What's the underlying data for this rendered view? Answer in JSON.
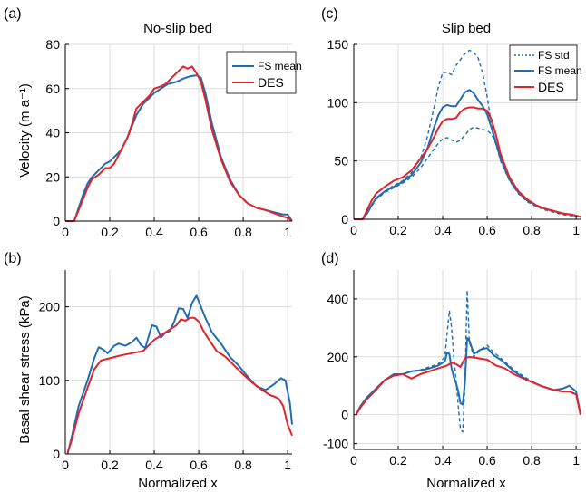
{
  "colors": {
    "fs": "#1f6db3",
    "des": "#e0242b",
    "grid": "#dcdcdc",
    "axis": "#000000"
  },
  "chart_data": [
    {
      "panel": "(a)",
      "title": "No-slip bed",
      "type": "line",
      "xlabel": "",
      "ylabel": "Velocity (m a⁻¹)",
      "xlim": [
        0,
        1.02
      ],
      "ylim": [
        0,
        80
      ],
      "xticks": [
        "0",
        "0.2",
        "0.4",
        "0.6",
        "0.8",
        "1"
      ],
      "xtick_values": [
        0,
        0.2,
        0.4,
        0.6,
        0.8,
        1
      ],
      "yticks": [
        "0",
        "20",
        "40",
        "60",
        "80"
      ],
      "ytick_values": [
        0,
        20,
        40,
        60,
        80
      ],
      "grid": true,
      "legend": "top-right",
      "series": [
        {
          "name": "FS mean",
          "style": "solid",
          "color": "#1f6db3",
          "x": [
            0,
            0.04,
            0.06,
            0.08,
            0.1,
            0.12,
            0.15,
            0.18,
            0.2,
            0.22,
            0.25,
            0.28,
            0.3,
            0.32,
            0.35,
            0.38,
            0.4,
            0.43,
            0.46,
            0.5,
            0.53,
            0.56,
            0.59,
            0.61,
            0.63,
            0.66,
            0.7,
            0.74,
            0.78,
            0.82,
            0.86,
            0.9,
            0.94,
            0.98,
            1.0,
            1.02
          ],
          "y": [
            0,
            0,
            6,
            12,
            17,
            20,
            23,
            26,
            27,
            29,
            32,
            38,
            43,
            48,
            53,
            56,
            58,
            60,
            62,
            63,
            64.5,
            65.5,
            66,
            65,
            58,
            44,
            29,
            19,
            12,
            8,
            6,
            5,
            4,
            3,
            3,
            0
          ]
        },
        {
          "name": "DES",
          "style": "solid",
          "color": "#e0242b",
          "x": [
            0,
            0.04,
            0.06,
            0.08,
            0.1,
            0.12,
            0.15,
            0.18,
            0.2,
            0.22,
            0.25,
            0.28,
            0.3,
            0.32,
            0.35,
            0.38,
            0.4,
            0.43,
            0.45,
            0.47,
            0.49,
            0.51,
            0.53,
            0.55,
            0.57,
            0.59,
            0.61,
            0.63,
            0.66,
            0.7,
            0.74,
            0.78,
            0.82,
            0.86,
            0.9,
            0.94,
            0.98,
            1.0,
            1.02
          ],
          "y": [
            0,
            0,
            5,
            10,
            15,
            19,
            21,
            24,
            24,
            26,
            32,
            38,
            44,
            51,
            54,
            57,
            60,
            61,
            62,
            64,
            66,
            68,
            70,
            69,
            70,
            67,
            63,
            55,
            41,
            28,
            18,
            12,
            8,
            6,
            5,
            3.5,
            2,
            1.5,
            0
          ]
        }
      ]
    },
    {
      "panel": "(b)",
      "title": "",
      "type": "line",
      "xlabel": "Normalized x",
      "ylabel": "Basal shear stress (kPa)",
      "xlim": [
        0,
        1.02
      ],
      "ylim": [
        0,
        250
      ],
      "xticks": [
        "0",
        "0.2",
        "0.4",
        "0.6",
        "0.8",
        "1"
      ],
      "xtick_values": [
        0,
        0.2,
        0.4,
        0.6,
        0.8,
        1
      ],
      "yticks": [
        "0",
        "100",
        "200"
      ],
      "ytick_values": [
        0,
        100,
        200
      ],
      "grid": true,
      "series": [
        {
          "name": "FS mean",
          "style": "solid",
          "color": "#1f6db3",
          "x": [
            0.01,
            0.03,
            0.06,
            0.1,
            0.13,
            0.15,
            0.17,
            0.19,
            0.2,
            0.22,
            0.24,
            0.27,
            0.3,
            0.32,
            0.34,
            0.36,
            0.38,
            0.39,
            0.41,
            0.43,
            0.45,
            0.47,
            0.49,
            0.51,
            0.53,
            0.55,
            0.57,
            0.59,
            0.61,
            0.63,
            0.66,
            0.7,
            0.74,
            0.78,
            0.82,
            0.86,
            0.9,
            0.94,
            0.97,
            0.99,
            1.01,
            1.02
          ],
          "y": [
            0,
            25,
            65,
            100,
            130,
            145,
            142,
            137,
            140,
            147,
            150,
            147,
            152,
            158,
            148,
            144,
            165,
            175,
            173,
            158,
            165,
            167,
            180,
            198,
            197,
            185,
            205,
            215,
            200,
            185,
            165,
            150,
            132,
            120,
            105,
            92,
            87,
            95,
            103,
            100,
            70,
            40
          ]
        },
        {
          "name": "DES",
          "style": "solid",
          "color": "#e0242b",
          "x": [
            0.01,
            0.03,
            0.06,
            0.1,
            0.13,
            0.16,
            0.2,
            0.25,
            0.3,
            0.35,
            0.4,
            0.45,
            0.5,
            0.52,
            0.54,
            0.56,
            0.58,
            0.6,
            0.62,
            0.64,
            0.68,
            0.72,
            0.76,
            0.8,
            0.84,
            0.88,
            0.92,
            0.94,
            0.96,
            0.98,
            1.0,
            1.02
          ],
          "y": [
            2,
            20,
            55,
            90,
            115,
            127,
            130,
            134,
            137,
            140,
            155,
            165,
            175,
            183,
            181,
            185,
            185,
            180,
            168,
            158,
            140,
            132,
            120,
            108,
            97,
            88,
            80,
            78,
            75,
            65,
            40,
            25
          ]
        }
      ]
    },
    {
      "panel": "(c)",
      "title": "Slip bed",
      "type": "line",
      "xlabel": "",
      "ylabel": "",
      "xlim": [
        0,
        1.02
      ],
      "ylim": [
        0,
        150
      ],
      "xticks": [
        "0",
        "0.2",
        "0.4",
        "0.6",
        "0.8",
        "1"
      ],
      "xtick_values": [
        0,
        0.2,
        0.4,
        0.6,
        0.8,
        1
      ],
      "yticks": [
        "0",
        "50",
        "100",
        "150"
      ],
      "ytick_values": [
        0,
        50,
        100,
        150
      ],
      "grid": true,
      "legend": "top-right",
      "series": [
        {
          "name": "FS std",
          "style": "dashed",
          "color": "#1f6db3",
          "x": [
            0,
            0.04,
            0.06,
            0.08,
            0.1,
            0.14,
            0.18,
            0.22,
            0.26,
            0.3,
            0.33,
            0.36,
            0.38,
            0.4,
            0.42,
            0.44,
            0.46,
            0.48,
            0.5,
            0.52,
            0.54,
            0.56,
            0.58,
            0.6,
            0.62,
            0.64,
            0.66,
            0.7,
            0.74,
            0.78,
            0.82,
            0.86,
            0.9,
            0.94,
            0.98,
            1.02
          ],
          "y": [
            0,
            0,
            5,
            12,
            18,
            24,
            29,
            33,
            40,
            52,
            70,
            95,
            113,
            126,
            126,
            124,
            132,
            137,
            142,
            145,
            143,
            138,
            125,
            105,
            80,
            65,
            52,
            35,
            24,
            17,
            12,
            9,
            7,
            5,
            4,
            2
          ]
        },
        {
          "name": "",
          "style": "dashed",
          "color": "#1f6db3",
          "x": [
            0,
            0.04,
            0.06,
            0.08,
            0.1,
            0.14,
            0.18,
            0.22,
            0.26,
            0.3,
            0.33,
            0.36,
            0.38,
            0.4,
            0.42,
            0.44,
            0.46,
            0.48,
            0.5,
            0.52,
            0.54,
            0.56,
            0.58,
            0.6,
            0.62,
            0.64,
            0.66,
            0.7,
            0.74,
            0.78,
            0.82,
            0.86,
            0.9,
            0.94,
            0.98,
            1.02
          ],
          "y": [
            0,
            0,
            5,
            11,
            17,
            23,
            27,
            31,
            36,
            44,
            52,
            60,
            65,
            69,
            70,
            68,
            66,
            68,
            72,
            77,
            79,
            78,
            77,
            76,
            73,
            64,
            50,
            33,
            22,
            15,
            11,
            8,
            6,
            4,
            3,
            2
          ]
        },
        {
          "name": "FS mean",
          "style": "solid",
          "color": "#1f6db3",
          "x": [
            0,
            0.04,
            0.06,
            0.08,
            0.1,
            0.14,
            0.18,
            0.22,
            0.26,
            0.3,
            0.33,
            0.36,
            0.38,
            0.4,
            0.42,
            0.44,
            0.46,
            0.48,
            0.5,
            0.52,
            0.54,
            0.56,
            0.58,
            0.6,
            0.62,
            0.64,
            0.66,
            0.7,
            0.74,
            0.78,
            0.82,
            0.86,
            0.9,
            0.94,
            0.98,
            1.02
          ],
          "y": [
            0,
            0,
            5,
            12,
            18,
            24,
            28,
            32,
            38,
            48,
            60,
            78,
            89,
            96,
            98,
            97,
            97,
            103,
            109,
            111,
            108,
            102,
            97,
            90,
            78,
            65,
            52,
            34,
            23,
            16,
            12,
            9,
            7,
            5,
            4,
            2
          ]
        },
        {
          "name": "DES",
          "style": "solid",
          "color": "#e0242b",
          "x": [
            0,
            0.04,
            0.06,
            0.08,
            0.1,
            0.14,
            0.18,
            0.22,
            0.26,
            0.3,
            0.33,
            0.36,
            0.38,
            0.4,
            0.42,
            0.44,
            0.46,
            0.48,
            0.5,
            0.52,
            0.54,
            0.56,
            0.58,
            0.6,
            0.62,
            0.64,
            0.66,
            0.7,
            0.74,
            0.78,
            0.82,
            0.86,
            0.9,
            0.94,
            0.98,
            1.02
          ],
          "y": [
            0,
            0,
            8,
            16,
            22,
            28,
            33,
            36,
            42,
            52,
            60,
            70,
            78,
            84,
            86,
            86,
            87,
            92,
            95,
            96,
            96,
            95,
            95,
            93,
            85,
            72,
            56,
            36,
            24,
            17,
            12,
            9,
            7,
            5,
            4,
            2
          ]
        }
      ]
    },
    {
      "panel": "(d)",
      "title": "",
      "type": "line",
      "xlabel": "Normalized x",
      "ylabel": "",
      "xlim": [
        0,
        1.02
      ],
      "ylim": [
        -120,
        500
      ],
      "xticks": [
        "0",
        "0.2",
        "0.4",
        "0.6",
        "0.8",
        "1"
      ],
      "xtick_values": [
        0,
        0.2,
        0.4,
        0.6,
        0.8,
        1
      ],
      "yticks": [
        "-100",
        "0",
        "200",
        "400"
      ],
      "ytick_values": [
        -100,
        0,
        200,
        400
      ],
      "grid": true,
      "series": [
        {
          "name": "FS std",
          "style": "dashed",
          "color": "#1f6db3",
          "x": [
            0.01,
            0.03,
            0.06,
            0.1,
            0.14,
            0.18,
            0.22,
            0.26,
            0.3,
            0.34,
            0.38,
            0.41,
            0.42,
            0.43,
            0.44,
            0.45,
            0.46,
            0.47,
            0.48,
            0.49,
            0.5,
            0.51,
            0.52,
            0.54,
            0.57,
            0.6,
            0.63,
            0.67,
            0.72,
            0.78,
            0.84,
            0.9,
            0.94,
            0.97,
            1.0,
            1.02
          ],
          "y": [
            0,
            30,
            60,
            90,
            120,
            140,
            140,
            150,
            155,
            165,
            175,
            200,
            280,
            360,
            300,
            200,
            120,
            30,
            -50,
            -60,
            100,
            430,
            250,
            200,
            225,
            240,
            215,
            190,
            155,
            125,
            100,
            85,
            90,
            100,
            80,
            0
          ]
        },
        {
          "name": "FS mean",
          "style": "solid",
          "color": "#1f6db3",
          "x": [
            0.01,
            0.03,
            0.06,
            0.1,
            0.14,
            0.18,
            0.22,
            0.26,
            0.3,
            0.34,
            0.38,
            0.41,
            0.42,
            0.43,
            0.44,
            0.45,
            0.46,
            0.47,
            0.48,
            0.49,
            0.5,
            0.51,
            0.52,
            0.54,
            0.57,
            0.6,
            0.63,
            0.67,
            0.72,
            0.78,
            0.84,
            0.9,
            0.94,
            0.97,
            1.0,
            1.02
          ],
          "y": [
            0,
            30,
            60,
            90,
            120,
            140,
            140,
            150,
            153,
            160,
            170,
            185,
            215,
            210,
            160,
            130,
            110,
            80,
            40,
            35,
            110,
            265,
            255,
            210,
            225,
            230,
            205,
            185,
            150,
            120,
            100,
            85,
            90,
            100,
            80,
            0
          ]
        },
        {
          "name": "DES",
          "style": "solid",
          "color": "#e0242b",
          "x": [
            0.01,
            0.03,
            0.06,
            0.1,
            0.14,
            0.18,
            0.22,
            0.26,
            0.3,
            0.34,
            0.38,
            0.42,
            0.44,
            0.46,
            0.48,
            0.5,
            0.52,
            0.56,
            0.6,
            0.64,
            0.68,
            0.72,
            0.78,
            0.84,
            0.9,
            0.94,
            0.97,
            1.0,
            1.02
          ],
          "y": [
            0,
            25,
            55,
            85,
            120,
            135,
            140,
            125,
            140,
            150,
            160,
            170,
            180,
            175,
            165,
            195,
            200,
            195,
            190,
            170,
            160,
            140,
            120,
            100,
            85,
            80,
            80,
            70,
            0
          ]
        }
      ]
    }
  ]
}
